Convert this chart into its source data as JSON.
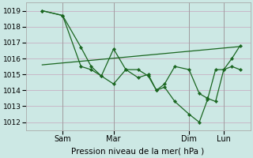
{
  "xlabel": "Pression niveau de la mer( hPa )",
  "bg_color": "#cce8e4",
  "grid_color": "#c8b8c8",
  "line_color": "#1a6620",
  "ylim": [
    1011.5,
    1019.5
  ],
  "yticks": [
    1012,
    1013,
    1014,
    1015,
    1016,
    1017,
    1018,
    1019
  ],
  "xlim": [
    -0.05,
    1.05
  ],
  "xtick_labels": [
    "Sam",
    "Mar",
    "Dim",
    "Lun"
  ],
  "xtick_pos": [
    0.13,
    0.38,
    0.75,
    0.92
  ],
  "vline_pos": [
    0.13,
    0.38,
    0.75,
    0.92
  ],
  "line1_x": [
    0.03,
    0.13,
    0.22,
    0.27,
    0.32,
    0.38,
    0.44,
    0.5,
    0.55,
    0.59,
    0.63,
    0.68,
    0.75,
    0.8,
    0.84,
    0.88,
    0.92,
    0.96,
    1.0
  ],
  "line1_y": [
    1019.0,
    1018.7,
    1016.7,
    1015.5,
    1014.9,
    1016.6,
    1015.3,
    1015.3,
    1014.9,
    1014.0,
    1014.4,
    1015.5,
    1015.3,
    1013.8,
    1013.5,
    1013.3,
    1015.3,
    1016.0,
    1016.8
  ],
  "line2_x": [
    0.03,
    0.13,
    0.22,
    0.27,
    0.32,
    0.38,
    0.44,
    0.5,
    0.55,
    0.59,
    0.63,
    0.68,
    0.75,
    0.8,
    0.84,
    0.88,
    0.92,
    0.96,
    1.0
  ],
  "line2_y": [
    1019.0,
    1018.7,
    1015.5,
    1015.3,
    1014.9,
    1014.4,
    1015.3,
    1014.8,
    1015.0,
    1014.0,
    1014.2,
    1013.3,
    1012.5,
    1012.0,
    1013.4,
    1015.3,
    1015.3,
    1015.5,
    1015.3
  ],
  "line3_x": [
    0.03,
    1.0
  ],
  "line3_y": [
    1015.6,
    1016.75
  ]
}
